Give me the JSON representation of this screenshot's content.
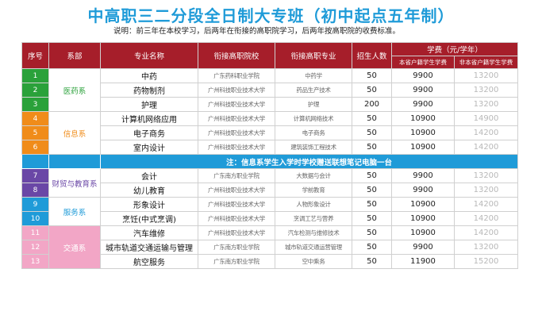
{
  "title": "中高职三二分段全日制大专班（初中起点五年制）",
  "note": "说明：前三年在本校学习，后两年在衔接的高职院学习，后两年按高职院的收费标准。",
  "headers": {
    "index": "序号",
    "dept": "系部",
    "major": "专业名称",
    "college": "衔接高职院校",
    "college_major": "衔接高职专业",
    "enroll": "招生人数",
    "fee": "学费（元/学年）",
    "fee_local": "本省户籍学生学费",
    "fee_nonlocal": "非本省户籍学生学费"
  },
  "departments": {
    "medical": "医药系",
    "info": "信息系",
    "finance": "财贸与教育系",
    "service": "服务系",
    "transport": "交通系"
  },
  "info_note": "注：信息系学生入学时学校赠送联想笔记电脑一台",
  "rows": [
    {
      "no": "1",
      "major": "中药",
      "college": "广东药科职业学院",
      "college_major": "中药学",
      "count": "50",
      "fee1": "9900",
      "fee2": "13200"
    },
    {
      "no": "2",
      "major": "药物制剂",
      "college": "广州科技职业技术大学",
      "college_major": "药品生产技术",
      "count": "50",
      "fee1": "9900",
      "fee2": "13200"
    },
    {
      "no": "3",
      "major": "护理",
      "college": "广州科技职业技术大学",
      "college_major": "护理",
      "count": "200",
      "fee1": "9900",
      "fee2": "13200"
    },
    {
      "no": "4",
      "major": "计算机网络应用",
      "college": "广州科技职业技术大学",
      "college_major": "计算机网络技术",
      "count": "50",
      "fee1": "10900",
      "fee2": "14900"
    },
    {
      "no": "5",
      "major": "电子商务",
      "college": "广州科技职业技术大学",
      "college_major": "电子商务",
      "count": "50",
      "fee1": "10900",
      "fee2": "14200"
    },
    {
      "no": "6",
      "major": "室内设计",
      "college": "广州科技职业技术大学",
      "college_major": "建筑装饰工程技术",
      "count": "50",
      "fee1": "10900",
      "fee2": "14200"
    },
    {
      "no": "7",
      "major": "会计",
      "college": "广东南方职业学院",
      "college_major": "大数据与会计",
      "count": "50",
      "fee1": "9900",
      "fee2": "13200"
    },
    {
      "no": "8",
      "major": "幼儿教育",
      "college": "广州科技职业技术大学",
      "college_major": "学前教育",
      "count": "50",
      "fee1": "9900",
      "fee2": "13200"
    },
    {
      "no": "9",
      "major": "形象设计",
      "college": "广州科技职业技术大学",
      "college_major": "人物形象设计",
      "count": "50",
      "fee1": "10900",
      "fee2": "14200"
    },
    {
      "no": "10",
      "major": "烹饪(中式烹调)",
      "college": "广州科技职业技术大学",
      "college_major": "烹调工艺与营养",
      "count": "50",
      "fee1": "10900",
      "fee2": "14200"
    },
    {
      "no": "11",
      "major": "汽车维修",
      "college": "广州科技职业技术大学",
      "college_major": "汽车检测与维修技术",
      "count": "50",
      "fee1": "10900",
      "fee2": "14200"
    },
    {
      "no": "12",
      "major": "城市轨道交通运输与管理",
      "college": "广东南方职业学院",
      "college_major": "城市轨道交通运营管理",
      "count": "50",
      "fee1": "9900",
      "fee2": "13200"
    },
    {
      "no": "13",
      "major": "航空服务",
      "college": "广东南方职业学院",
      "college_major": "空中乘务",
      "count": "50",
      "fee1": "11900",
      "fee2": "15200"
    }
  ],
  "colors": {
    "header_red": "#a61e2a",
    "title_blue": "#1f9bd8",
    "medical_green": "#2aa13a",
    "info_orange": "#f08c1a",
    "finance_purple": "#6a47a6",
    "service_blue": "#1f9bd8",
    "transport_pink": "#f2a6c6"
  }
}
